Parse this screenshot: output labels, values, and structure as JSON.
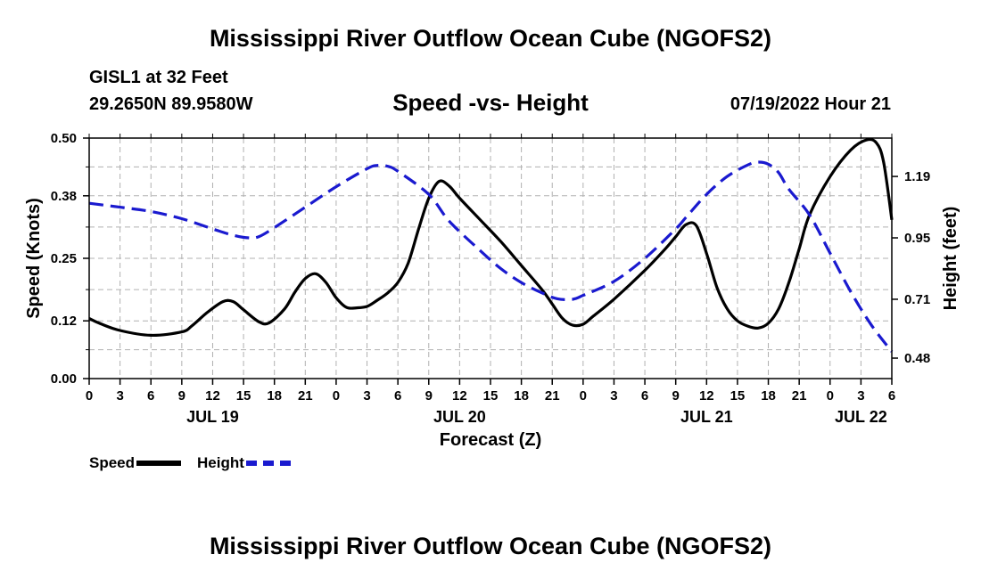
{
  "header": {
    "title": "Mississippi River Outflow Ocean Cube (NGOFS2)",
    "station": "GISL1 at 32 Feet",
    "coords": "29.2650N  89.9580W",
    "subtitle": "Speed -vs- Height",
    "datetime": "07/19/2022 Hour 21"
  },
  "footer": {
    "title": "Mississippi River Outflow Ocean Cube (NGOFS2)"
  },
  "legend": {
    "speed_label": "Speed",
    "height_label": "Height"
  },
  "chart_data": {
    "type": "line",
    "title": "Speed -vs- Height",
    "xlabel": "Forecast (Z)",
    "ylabel": "Speed (Knots)",
    "ylabel_right": "Height (feet)",
    "x_unit": "hours since JUL 19 00Z",
    "xlim": [
      0,
      78
    ],
    "ylim": [
      0,
      0.5
    ],
    "ylim_right": [
      0.4,
      1.34
    ],
    "x_tick_values": [
      0,
      3,
      6,
      9,
      12,
      15,
      18,
      21,
      24,
      27,
      30,
      33,
      36,
      39,
      42,
      45,
      48,
      51,
      54,
      57,
      60,
      63,
      66,
      69,
      72,
      75,
      78
    ],
    "x_tick_labels": [
      "0",
      "3",
      "6",
      "9",
      "12",
      "15",
      "18",
      "21",
      "0",
      "3",
      "6",
      "9",
      "12",
      "15",
      "18",
      "21",
      "0",
      "3",
      "6",
      "9",
      "12",
      "15",
      "18",
      "21",
      "0",
      "3",
      "6"
    ],
    "day_labels": [
      {
        "x": 12,
        "label": "JUL 19"
      },
      {
        "x": 36,
        "label": "JUL 20"
      },
      {
        "x": 60,
        "label": "JUL 21"
      },
      {
        "x": 75,
        "label": "JUL 22"
      }
    ],
    "y_ticks_left": [
      0.0,
      0.12,
      0.25,
      0.38,
      0.5
    ],
    "y_tick_labels_left": [
      "0.00",
      "0.12",
      "0.25",
      "0.38",
      "0.50"
    ],
    "y_ticks_right": [
      0.48,
      0.71,
      0.95,
      1.19
    ],
    "y_tick_labels_right": [
      "0.48",
      "0.71",
      "0.95",
      "1.19"
    ],
    "grid": true,
    "series": [
      {
        "name": "Speed",
        "axis": "left",
        "color": "#000000",
        "style": "solid",
        "points": [
          [
            0,
            0.125
          ],
          [
            1,
            0.115
          ],
          [
            3,
            0.1
          ],
          [
            6,
            0.09
          ],
          [
            9,
            0.097
          ],
          [
            10,
            0.11
          ],
          [
            11.5,
            0.138
          ],
          [
            13,
            0.16
          ],
          [
            14,
            0.16
          ],
          [
            15,
            0.143
          ],
          [
            16.5,
            0.118
          ],
          [
            17.5,
            0.116
          ],
          [
            19,
            0.145
          ],
          [
            20,
            0.18
          ],
          [
            21,
            0.208
          ],
          [
            22,
            0.218
          ],
          [
            23,
            0.2
          ],
          [
            24,
            0.168
          ],
          [
            25,
            0.148
          ],
          [
            26,
            0.147
          ],
          [
            27,
            0.15
          ],
          [
            28,
            0.163
          ],
          [
            29,
            0.178
          ],
          [
            30,
            0.2
          ],
          [
            31,
            0.24
          ],
          [
            32,
            0.31
          ],
          [
            33,
            0.375
          ],
          [
            34,
            0.41
          ],
          [
            35,
            0.4
          ],
          [
            36,
            0.375
          ],
          [
            38,
            0.33
          ],
          [
            40,
            0.285
          ],
          [
            42,
            0.235
          ],
          [
            44,
            0.185
          ],
          [
            45,
            0.155
          ],
          [
            46,
            0.125
          ],
          [
            47,
            0.111
          ],
          [
            48,
            0.113
          ],
          [
            49,
            0.13
          ],
          [
            51,
            0.165
          ],
          [
            54,
            0.225
          ],
          [
            56,
            0.27
          ],
          [
            57,
            0.295
          ],
          [
            58,
            0.32
          ],
          [
            59,
            0.318
          ],
          [
            60,
            0.26
          ],
          [
            61,
            0.19
          ],
          [
            62,
            0.145
          ],
          [
            63,
            0.12
          ],
          [
            64,
            0.109
          ],
          [
            65,
            0.105
          ],
          [
            66,
            0.115
          ],
          [
            67,
            0.145
          ],
          [
            68,
            0.2
          ],
          [
            69,
            0.27
          ],
          [
            70,
            0.34
          ],
          [
            72,
            0.42
          ],
          [
            74,
            0.475
          ],
          [
            75.5,
            0.496
          ],
          [
            76.5,
            0.49
          ],
          [
            77.2,
            0.45
          ],
          [
            78,
            0.33
          ]
        ]
      },
      {
        "name": "Height",
        "axis": "right",
        "color": "#1a1acf",
        "style": "dashed",
        "points": [
          [
            0,
            1.085
          ],
          [
            3,
            1.07
          ],
          [
            6,
            1.053
          ],
          [
            9,
            1.025
          ],
          [
            12,
            0.985
          ],
          [
            14,
            0.96
          ],
          [
            15.5,
            0.95
          ],
          [
            16.5,
            0.955
          ],
          [
            18,
            0.99
          ],
          [
            21,
            1.07
          ],
          [
            24,
            1.15
          ],
          [
            27,
            1.22
          ],
          [
            28,
            1.233
          ],
          [
            29,
            1.23
          ],
          [
            30,
            1.21
          ],
          [
            33,
            1.12
          ],
          [
            35,
            1.015
          ],
          [
            38,
            0.9
          ],
          [
            40,
            0.83
          ],
          [
            42,
            0.775
          ],
          [
            44,
            0.735
          ],
          [
            45.5,
            0.712
          ],
          [
            47,
            0.71
          ],
          [
            48,
            0.725
          ],
          [
            51,
            0.78
          ],
          [
            54,
            0.87
          ],
          [
            57,
            0.985
          ],
          [
            58,
            1.03
          ],
          [
            60,
            1.12
          ],
          [
            62,
            1.19
          ],
          [
            64,
            1.235
          ],
          [
            65,
            1.246
          ],
          [
            66,
            1.238
          ],
          [
            67,
            1.205
          ],
          [
            68,
            1.14
          ],
          [
            70,
            1.04
          ],
          [
            72,
            0.89
          ],
          [
            74,
            0.74
          ],
          [
            76,
            0.61
          ],
          [
            78,
            0.505
          ]
        ]
      }
    ]
  }
}
